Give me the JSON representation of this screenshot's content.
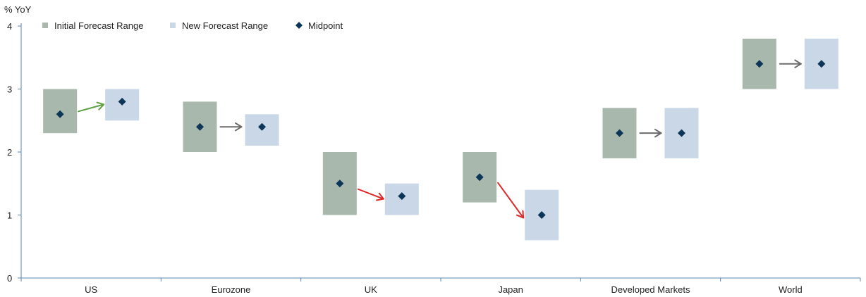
{
  "chart_data": {
    "type": "range",
    "ylabel": "% YoY",
    "ylim": [
      0,
      4
    ],
    "yticks": [
      0,
      1,
      2,
      3,
      4
    ],
    "categories": [
      "US",
      "Eurozone",
      "UK",
      "Japan",
      "Developed Markets",
      "World"
    ],
    "series": [
      {
        "name": "Initial Forecast Range",
        "low": [
          2.3,
          2.0,
          1.0,
          1.2,
          1.9,
          3.0
        ],
        "high": [
          3.0,
          2.8,
          2.0,
          2.0,
          2.7,
          3.8
        ],
        "midpoint": [
          2.6,
          2.4,
          1.5,
          1.6,
          2.3,
          3.4
        ]
      },
      {
        "name": "New Forecast Range",
        "low": [
          2.5,
          2.1,
          1.0,
          0.6,
          1.9,
          3.0
        ],
        "high": [
          3.0,
          2.6,
          1.5,
          1.4,
          2.7,
          3.8
        ],
        "midpoint": [
          2.8,
          2.4,
          1.3,
          1.0,
          2.3,
          3.4
        ]
      }
    ],
    "midpoint_label": "Midpoint",
    "arrow_direction": [
      "up",
      "flat",
      "down",
      "down",
      "flat",
      "flat"
    ],
    "legend_position": "top-left",
    "grid": false,
    "colors": {
      "initial": "#a9b8ad",
      "new": "#c9d7e6",
      "midpoint": "#0c3557",
      "up": "#5ea043",
      "flat": "#6b6b6b",
      "down": "#e02828",
      "axis": "#5a84b0"
    }
  }
}
